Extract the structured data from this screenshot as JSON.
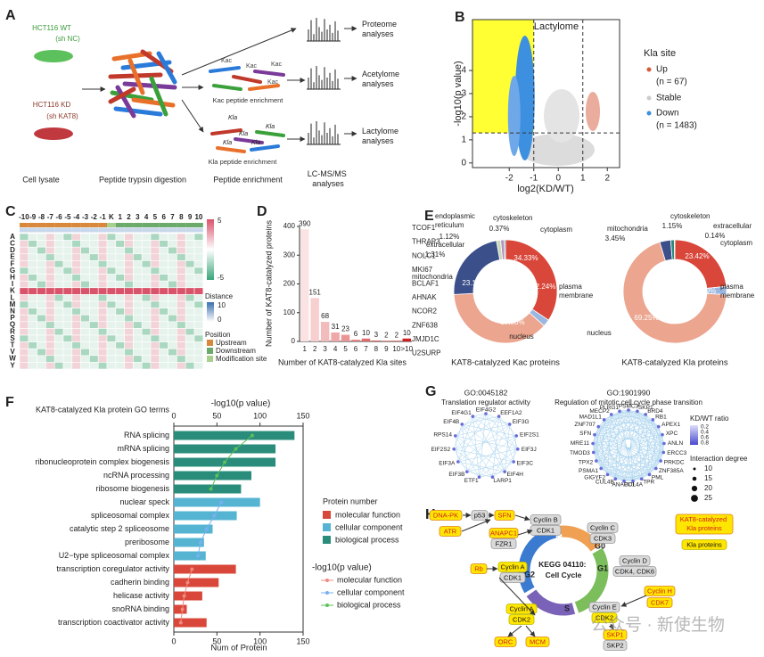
{
  "panel_letters": [
    "A",
    "B",
    "C",
    "D",
    "E",
    "F",
    "G",
    "H"
  ],
  "panel_a": {
    "cells": [
      {
        "name": "HCT116 WT",
        "sub": "(sh NC)"
      },
      {
        "name": "HCT116 KD",
        "sub": "(sh KAT8)"
      }
    ],
    "steps": [
      "Cell lysate",
      "Peptide trypsin digestion",
      "Peptide enrichment",
      "LC-MS/MS analyses"
    ],
    "enrich": [
      "Kac peptide enrichment",
      "Kla peptide enrichment"
    ],
    "mods": [
      "Kac",
      "Kla"
    ],
    "outputs": [
      "Proteome analyses",
      "Acetylome analyses",
      "Lactylome analyses"
    ]
  },
  "panel_b": {
    "title": "Lactylome",
    "xlabel": "log2(KD/WT)",
    "ylabel": "-log10(p value)",
    "xlim": [
      -3.5,
      2.5
    ],
    "ylim": [
      -0.2,
      6.2
    ],
    "xticks": [
      -2,
      -1,
      0,
      1,
      2
    ],
    "yticks": [
      0,
      1,
      2,
      3,
      4
    ],
    "x_thresholds": [
      -1,
      1
    ],
    "y_threshold": 1.3,
    "legend_title": "Kla site",
    "legend": [
      {
        "name": "Up",
        "count": "(n = 67)",
        "color": "#d65a3c"
      },
      {
        "name": "Stable",
        "color": "#cccccc"
      },
      {
        "name": "Down",
        "count": "(n = 1483)",
        "color": "#3d8fe0"
      }
    ]
  },
  "panel_c": {
    "columns": [
      "-10",
      "-9",
      "-8",
      "-7",
      "-6",
      "-5",
      "-4",
      "-3",
      "-2",
      "-1",
      "K",
      "1",
      "2",
      "3",
      "4",
      "5",
      "6",
      "7",
      "8",
      "9",
      "10"
    ],
    "rows": [
      "A",
      "C",
      "D",
      "E",
      "F",
      "G",
      "H",
      "I",
      "K",
      "L",
      "M",
      "N",
      "P",
      "Q",
      "R",
      "S",
      "T",
      "V",
      "W",
      "Y"
    ],
    "color_ticks": [
      5,
      -5
    ],
    "distance_title": "Distance",
    "distance_ticks": [
      10,
      0
    ],
    "position_title": "Position",
    "positions": [
      {
        "name": "Upstream",
        "color": "#d9873a"
      },
      {
        "name": "Downstream",
        "color": "#6aaa6a"
      },
      {
        "name": "Modification site",
        "color": "#a8d08d"
      }
    ]
  },
  "chart_data": [
    {
      "type": "bar",
      "ylabel": "Number of KAT8-catalyzed proteins",
      "xlabel": "Number of KAT8-catalyzed Kla sites",
      "categories": [
        "1",
        "2",
        "3",
        "4",
        "5",
        "6",
        "7",
        "8",
        "9",
        "10",
        ">10"
      ],
      "values": [
        390,
        151,
        68,
        31,
        23,
        6,
        10,
        3,
        2,
        2,
        10
      ],
      "colors": [
        "#fbe3e3",
        "#f7cfcf",
        "#f3bcbc",
        "#eea8a8",
        "#ea9494",
        "#e58080",
        "#e06c6c",
        "#dc5858",
        "#d74545",
        "#d33232",
        "#cf1f1f"
      ],
      "ylim": [
        0,
        400
      ],
      "yticks": [
        0,
        100,
        200,
        300,
        400
      ],
      "proteins": [
        "TCOF1",
        "THRAP3",
        "NOLC1",
        "MKI67",
        "BCLAF1",
        "AHNAK",
        "NCOR2",
        "ZNF638",
        "JMJD1C",
        "U2SURP"
      ]
    },
    {
      "type": "pie",
      "title": "KAT8-catalyzed Kac proteins",
      "categories": [
        "cytoplasm",
        "plasma membrane",
        "nucleus",
        "mitochondria",
        "extracellular",
        "endoplasmic reticulum",
        "cytoskeleton"
      ],
      "values": [
        34.33,
        2.24,
        37.5,
        23.13,
        1.31,
        1.12,
        0.37
      ],
      "value_labels": [
        "34.33%",
        "2.24%",
        "37.50%",
        "23.13%",
        "1.31%",
        "1.12%",
        "0.37%"
      ],
      "colors": [
        "#d9473a",
        "#9bb7e0",
        "#eca58e",
        "#3b4f8a",
        "#c7d9b5",
        "#b58fc4",
        "#2e8b7a"
      ]
    },
    {
      "type": "pie",
      "title": "KAT8-catalyzed Kla proteins",
      "categories": [
        "cytoplasm",
        "plasma membrane",
        "nucleus",
        "mitochondria",
        "cytoskeleton",
        "extracellular"
      ],
      "values": [
        23.42,
        2.59,
        69.25,
        3.45,
        1.15,
        0.14
      ],
      "value_labels": [
        "23.42%",
        "2.59%",
        "69.25%",
        "3.45%",
        "1.15%",
        "0.14%"
      ],
      "colors": [
        "#d9473a",
        "#9bb7e0",
        "#eca58e",
        "#3b4f8a",
        "#2e8b7a",
        "#c7d9b5"
      ]
    },
    {
      "type": "barh",
      "title": "KAT8-catalyzed Kla protein GO terms",
      "categories": [
        "RNA splicing",
        "mRNA splicing",
        "ribonucleoprotein complex biogenesis",
        "ncRNA processing",
        "ribosome biogenesis",
        "nuclear speck",
        "spliceosomal complex",
        "catalytic step 2 spliceosome",
        "preribosome",
        "U2−type spliceosomal complex",
        "transcription coregulator activity",
        "cadherin binding",
        "helicase activity",
        "snoRNA binding",
        "transcription coactivator activity"
      ],
      "xlabel": "Num of Protein",
      "xlim": [
        0,
        150
      ],
      "xticks": [
        0,
        50,
        100,
        150
      ],
      "x2label": "-log10(p value)",
      "x2lim": [
        0,
        150
      ],
      "x2ticks": [
        0,
        50,
        100,
        150
      ],
      "legend_title": "Protein number",
      "line_legend_title": "-log10(p value)",
      "series": [
        {
          "name": "molecular function",
          "color": "#d9473a",
          "values": [
            null,
            null,
            null,
            null,
            null,
            null,
            null,
            null,
            null,
            null,
            72,
            52,
            33,
            15,
            38
          ]
        },
        {
          "name": "cellular component",
          "color": "#56b4d3",
          "values": [
            null,
            null,
            null,
            null,
            null,
            100,
            73,
            45,
            35,
            37,
            null,
            null,
            null,
            null,
            null
          ]
        },
        {
          "name": "biological process",
          "color": "#2a8c7a",
          "values": [
            140,
            118,
            118,
            90,
            78,
            null,
            null,
            null,
            null,
            null,
            null,
            null,
            null,
            null,
            null
          ]
        }
      ],
      "line_series": [
        {
          "name": "molecular function",
          "color": "#f08a80",
          "values": [
            null,
            null,
            null,
            null,
            null,
            null,
            null,
            null,
            null,
            null,
            21,
            16,
            12,
            10,
            8
          ]
        },
        {
          "name": "cellular component",
          "color": "#7ab0f0",
          "values": [
            null,
            null,
            null,
            null,
            null,
            55,
            47,
            38,
            31,
            28,
            null,
            null,
            null,
            null,
            null
          ]
        },
        {
          "name": "biological process",
          "color": "#5cc05c",
          "values": [
            91,
            72,
            59,
            50,
            43,
            null,
            null,
            null,
            null,
            null,
            null,
            null,
            null,
            null,
            null
          ]
        }
      ]
    }
  ],
  "panel_g": {
    "networks": [
      {
        "id": "GO:0045182",
        "title": "Translation regulator activity",
        "nodes": [
          "EIF4G2",
          "EEF1A2",
          "EIF3G",
          "EIF2S1",
          "EIF3J",
          "EIF3C",
          "EIF4H",
          "LARP1",
          "ETF1",
          "EIF3B",
          "EIF3A",
          "EIF2S2",
          "RPS14",
          "EIF4B",
          "EIF4G1"
        ]
      },
      {
        "id": "GO:1901990",
        "title": "Regulation of mitotic cell cycle phase transition",
        "nodes": [
          "PSMC3",
          "SKP1",
          "BRD4",
          "RB1",
          "APEX1",
          "XPC",
          "ANLN",
          "ERCC3",
          "PRKDC",
          "ZNF385A",
          "PML",
          "TPR",
          "CUL4A",
          "ANAPC1",
          "CUL4B",
          "GIGYF2",
          "PSMA1",
          "TPX2",
          "TMOD3",
          "MRE11",
          "SFN",
          "ZNF707",
          "MAD1L1",
          "MECP2",
          "PLRG1"
        ]
      }
    ],
    "ratio_title": "KD/WT ratio",
    "ratio_ticks": [
      0.2,
      0.4,
      0.6,
      0.8
    ],
    "degree_title": "Interaction degree",
    "degree_ticks": [
      10,
      15,
      20,
      25
    ]
  },
  "panel_h": {
    "center": "KEGG 04110: Cell Cycle",
    "phases": [
      "M",
      "G0",
      "G1",
      "S",
      "G2"
    ],
    "boxes": [
      "DNA-PK",
      "p53",
      "SFN",
      "ATR",
      "ANAPC1",
      "FZR1",
      "Cyclin B",
      "CDK1",
      "Cyclin C",
      "CDK3",
      "Cyclin D",
      "CDK4, CDK6",
      "Rb",
      "Cyclin A",
      "CDK1",
      "Cyclin H",
      "CDK7",
      "Cyclin E",
      "CDK2",
      "Cyclin A",
      "CDK2",
      "ORC",
      "MCM",
      "SKP1",
      "SKP2"
    ],
    "legend": [
      "KAT8-catalyzed Kla proteins",
      "Kla proteins"
    ]
  },
  "watermark": "公众号 · 新使生物"
}
